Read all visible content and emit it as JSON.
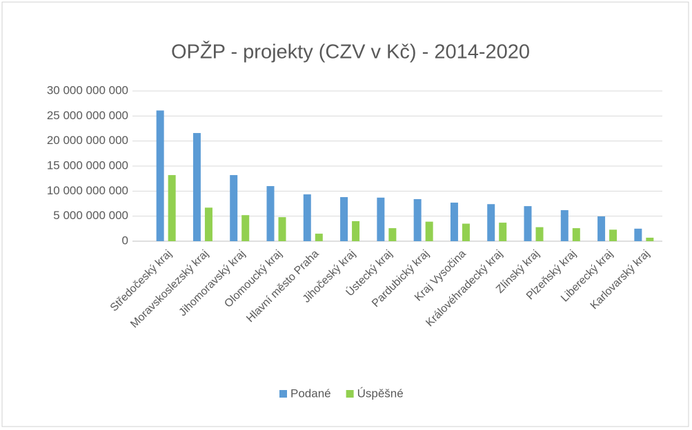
{
  "chart_data": {
    "type": "bar",
    "title": "OPŽP - projekty (CZV v Kč)  - 2014-2020",
    "categories": [
      "Středočeský kraj",
      "Moravskoslezský kraj",
      "Jihomoravský kraj",
      "Olomoucký kraj",
      "Hlavní město Praha",
      "Jihočeský kraj",
      "Ústecký kraj",
      "Pardubický kraj",
      "Kraj Vysočina",
      "Královéhradecký kraj",
      "Zlínský kraj",
      "Plzeňský kraj",
      "Liberecký kraj",
      "Karlovarský kraj"
    ],
    "series": [
      {
        "name": "Podané",
        "color": "#5b9bd5",
        "values": [
          26100000000,
          21600000000,
          13200000000,
          11000000000,
          9350000000,
          8800000000,
          8700000000,
          8400000000,
          7700000000,
          7400000000,
          7000000000,
          6200000000,
          4950000000,
          2500000000
        ]
      },
      {
        "name": "Úspěšné",
        "color": "#92d050",
        "values": [
          13200000000,
          6700000000,
          5200000000,
          4800000000,
          1500000000,
          4000000000,
          2600000000,
          3900000000,
          3500000000,
          3700000000,
          2800000000,
          2600000000,
          2300000000,
          700000000
        ]
      }
    ],
    "ylim": [
      0,
      30000000000
    ],
    "yticks": [
      0,
      {
        "value": 5000000000,
        "label": "5 000 000 000"
      },
      {
        "value": 10000000000,
        "label": "10 000 000 000"
      },
      {
        "value": 15000000000,
        "label": "15 000 000 000"
      },
      {
        "value": 20000000000,
        "label": "20 000 000 000"
      },
      {
        "value": 25000000000,
        "label": "25 000 000 000"
      },
      {
        "value": 30000000000,
        "label": "30 000 000 000"
      }
    ],
    "grid": true,
    "legend": "bottom"
  }
}
